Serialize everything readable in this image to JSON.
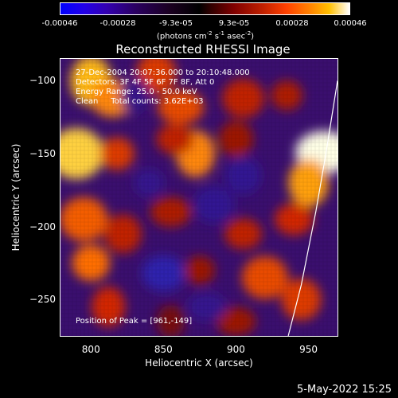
{
  "colorbar": {
    "ticks": [
      "-0.00046",
      "-0.00028",
      "-9.3e-05",
      "9.3e-05",
      "0.00028",
      "0.00046"
    ],
    "units_prefix": "(photons cm",
    "units_sup1": "-2",
    "units_mid1": " s",
    "units_sup2": "-1",
    "units_mid2": " asec",
    "units_sup3": "-2",
    "units_suffix": ")"
  },
  "chart_data": {
    "type": "heatmap",
    "title": "Reconstructed RHESSI Image",
    "xlabel": "Heliocentric X (arcsec)",
    "ylabel": "Heliocentric Y (arcsec)",
    "xlim": [
      779,
      970
    ],
    "ylim": [
      -275,
      -85
    ],
    "xticks": [
      "800",
      "850",
      "900",
      "950"
    ],
    "yticks": [
      "-100",
      "-150",
      "-200",
      "-250"
    ],
    "color_scale": {
      "min": -0.00046,
      "max": 0.00046
    },
    "annotations": [
      "27-Dec-2004 20:07:36.000 to 20:10:48.000",
      "Detectors: 3F 4F 5F 6F 7F 8F, Att 0",
      "Energy Range: 25.0 - 50.0 keV",
      "Clean     Total counts: 3.62E+03"
    ],
    "peak_label": "Position of Peak = [961,-149]",
    "peak": {
      "x": 961,
      "y": -149
    },
    "limb_curve": [
      [
        936,
        -275
      ],
      [
        945,
        -240
      ],
      [
        955,
        -190
      ],
      [
        962,
        -150
      ],
      [
        970,
        -100
      ]
    ],
    "blobs": [
      {
        "x": 800,
        "y": -100,
        "level": 0.85
      },
      {
        "x": 815,
        "y": -112,
        "level": 0.75
      },
      {
        "x": 790,
        "y": -150,
        "level": 0.9
      },
      {
        "x": 818,
        "y": -150,
        "level": 0.55
      },
      {
        "x": 845,
        "y": -95,
        "level": 0.55
      },
      {
        "x": 862,
        "y": -118,
        "level": 0.6
      },
      {
        "x": 872,
        "y": -150,
        "level": 0.75
      },
      {
        "x": 858,
        "y": -140,
        "level": 0.45
      },
      {
        "x": 905,
        "y": -112,
        "level": 0.45
      },
      {
        "x": 935,
        "y": -110,
        "level": 0.4
      },
      {
        "x": 900,
        "y": -140,
        "level": 0.35
      },
      {
        "x": 961,
        "y": -149,
        "level": 1.0
      },
      {
        "x": 950,
        "y": -170,
        "level": 0.8
      },
      {
        "x": 940,
        "y": -195,
        "level": 0.5
      },
      {
        "x": 795,
        "y": -195,
        "level": 0.65
      },
      {
        "x": 800,
        "y": -225,
        "level": 0.7
      },
      {
        "x": 822,
        "y": -205,
        "level": 0.45
      },
      {
        "x": 855,
        "y": -190,
        "level": 0.4
      },
      {
        "x": 812,
        "y": -255,
        "level": 0.5
      },
      {
        "x": 905,
        "y": -205,
        "level": 0.45
      },
      {
        "x": 920,
        "y": -235,
        "level": 0.6
      },
      {
        "x": 875,
        "y": -230,
        "level": 0.35
      },
      {
        "x": 945,
        "y": -250,
        "level": 0.55
      },
      {
        "x": 900,
        "y": -265,
        "level": 0.35
      },
      {
        "x": 855,
        "y": -265,
        "level": 0.25
      },
      {
        "x": 850,
        "y": -232,
        "level": -0.7
      },
      {
        "x": 885,
        "y": -185,
        "level": -0.4
      },
      {
        "x": 840,
        "y": -170,
        "level": -0.35
      },
      {
        "x": 905,
        "y": -165,
        "level": -0.4
      },
      {
        "x": 880,
        "y": -255,
        "level": -0.35
      },
      {
        "x": 830,
        "y": -110,
        "level": -0.3
      }
    ]
  },
  "timestamp": "5-May-2022 15:25"
}
